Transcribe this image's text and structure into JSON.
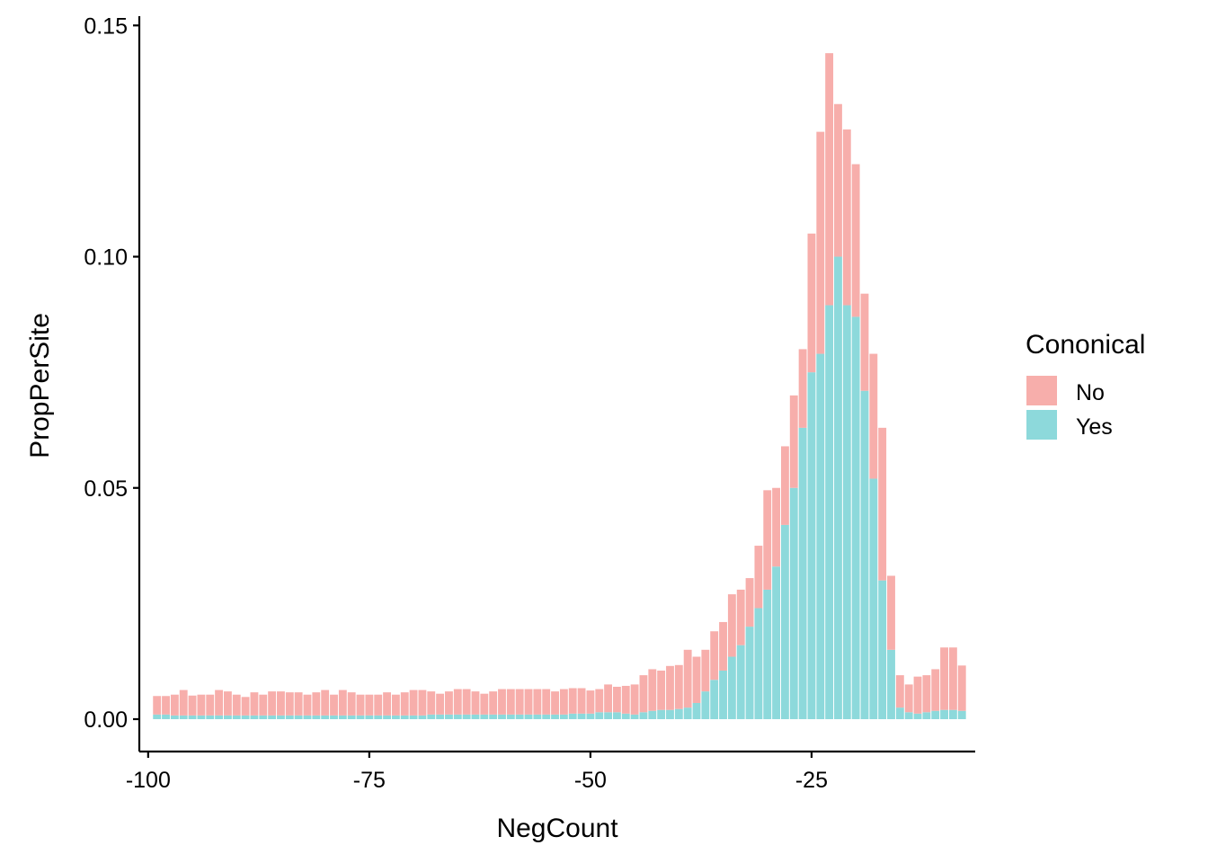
{
  "chart_data": {
    "type": "bar",
    "stacked": true,
    "xlabel": "NegCount",
    "ylabel": "PropPerSite",
    "xlim": [
      -101,
      -6.5
    ],
    "ylim": [
      -0.007,
      0.152
    ],
    "x_ticks": [
      -100,
      -75,
      -50,
      -25
    ],
    "x_tick_labels": [
      "-100",
      "-75",
      "-50",
      "-25"
    ],
    "y_ticks": [
      0,
      0.05,
      0.1,
      0.15
    ],
    "y_tick_labels": [
      "0.00",
      "0.05",
      "0.10",
      "0.15"
    ],
    "grid": false,
    "legend": {
      "title": "Cononical",
      "position": "right"
    },
    "x": [
      -99,
      -98,
      -97,
      -96,
      -95,
      -94,
      -93,
      -92,
      -91,
      -90,
      -89,
      -88,
      -87,
      -86,
      -85,
      -84,
      -83,
      -82,
      -81,
      -80,
      -79,
      -78,
      -77,
      -76,
      -75,
      -74,
      -73,
      -72,
      -71,
      -70,
      -69,
      -68,
      -67,
      -66,
      -65,
      -64,
      -63,
      -62,
      -61,
      -60,
      -59,
      -58,
      -57,
      -56,
      -55,
      -54,
      -53,
      -52,
      -51,
      -50,
      -49,
      -48,
      -47,
      -46,
      -45,
      -44,
      -43,
      -42,
      -41,
      -40,
      -39,
      -38,
      -37,
      -36,
      -35,
      -34,
      -33,
      -32,
      -31,
      -30,
      -29,
      -28,
      -27,
      -26,
      -25,
      -24,
      -23,
      -22,
      -21,
      -20,
      -19,
      -18,
      -17,
      -16,
      -15,
      -14,
      -13,
      -12,
      -11,
      -10,
      -9,
      -8
    ],
    "series": [
      {
        "name": "Yes",
        "color": "#8dd9db",
        "values": [
          0.001,
          0.001,
          0.0008,
          0.0008,
          0.0008,
          0.0008,
          0.0008,
          0.0008,
          0.0008,
          0.0008,
          0.0008,
          0.0008,
          0.0008,
          0.0008,
          0.0008,
          0.0008,
          0.0008,
          0.0008,
          0.0008,
          0.0008,
          0.0008,
          0.0008,
          0.0008,
          0.0008,
          0.0008,
          0.0008,
          0.0008,
          0.0008,
          0.0008,
          0.0008,
          0.0008,
          0.001,
          0.001,
          0.001,
          0.001,
          0.001,
          0.001,
          0.001,
          0.001,
          0.001,
          0.001,
          0.001,
          0.001,
          0.001,
          0.001,
          0.001,
          0.001,
          0.0012,
          0.0012,
          0.0012,
          0.0015,
          0.0015,
          0.0015,
          0.0012,
          0.001,
          0.0015,
          0.0018,
          0.002,
          0.002,
          0.0022,
          0.0025,
          0.0035,
          0.006,
          0.0085,
          0.0105,
          0.0135,
          0.016,
          0.02,
          0.024,
          0.028,
          0.033,
          0.042,
          0.05,
          0.063,
          0.075,
          0.079,
          0.0895,
          0.1,
          0.0895,
          0.087,
          0.071,
          0.052,
          0.03,
          0.015,
          0.0025,
          0.0015,
          0.0012,
          0.0015,
          0.0018,
          0.002,
          0.002,
          0.0018
        ]
      },
      {
        "name": "No",
        "color": "#f7aeab",
        "values": [
          0.004,
          0.004,
          0.0045,
          0.0055,
          0.0043,
          0.0045,
          0.0045,
          0.0055,
          0.0052,
          0.0045,
          0.004,
          0.005,
          0.0045,
          0.0052,
          0.0052,
          0.005,
          0.005,
          0.0045,
          0.005,
          0.0055,
          0.0045,
          0.0055,
          0.005,
          0.0045,
          0.0045,
          0.0045,
          0.005,
          0.0045,
          0.005,
          0.0055,
          0.0055,
          0.005,
          0.0045,
          0.005,
          0.0055,
          0.0055,
          0.005,
          0.0045,
          0.005,
          0.0055,
          0.0055,
          0.0055,
          0.0055,
          0.0055,
          0.0055,
          0.005,
          0.0055,
          0.0055,
          0.0055,
          0.005,
          0.005,
          0.006,
          0.0055,
          0.006,
          0.0065,
          0.008,
          0.009,
          0.0085,
          0.0095,
          0.0095,
          0.0125,
          0.01,
          0.009,
          0.0105,
          0.0105,
          0.0135,
          0.012,
          0.0105,
          0.0135,
          0.0215,
          0.017,
          0.017,
          0.02,
          0.017,
          0.03,
          0.048,
          0.0545,
          0.033,
          0.038,
          0.033,
          0.021,
          0.027,
          0.033,
          0.016,
          0.007,
          0.006,
          0.008,
          0.008,
          0.009,
          0.0135,
          0.0135,
          0.0098
        ]
      }
    ]
  }
}
